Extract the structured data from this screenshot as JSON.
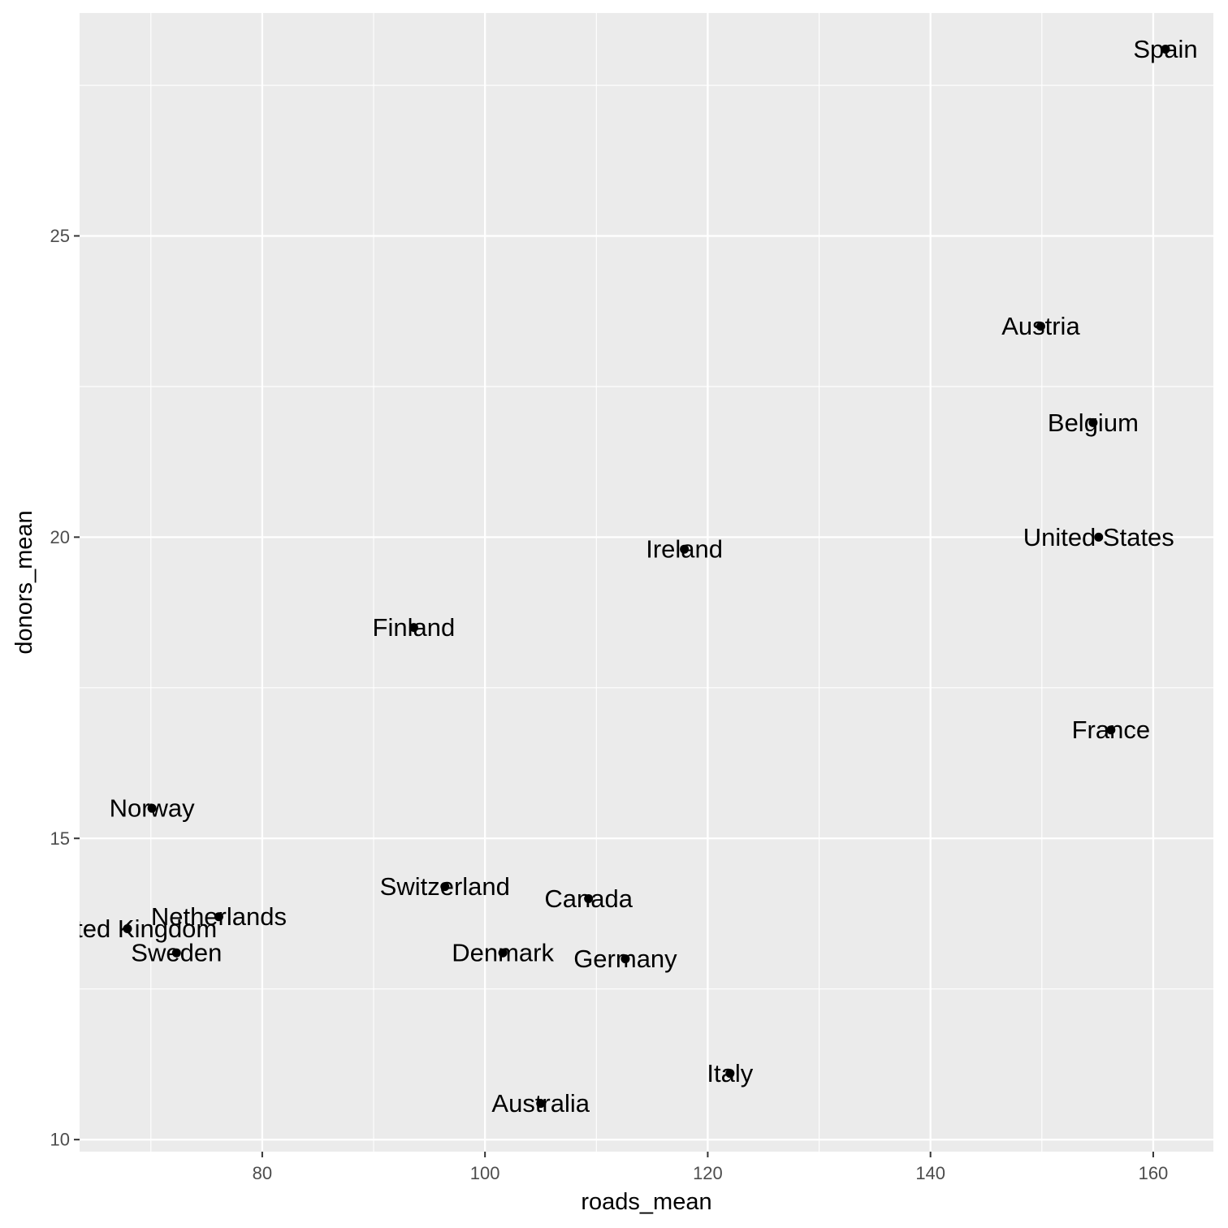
{
  "chart_data": {
    "type": "scatter",
    "title": "",
    "xlabel": "roads_mean",
    "ylabel": "donors_mean",
    "xlim": [
      63.6,
      165.4
    ],
    "ylim": [
      9.8,
      28.7
    ],
    "x_ticks": [
      80,
      100,
      120,
      140,
      160
    ],
    "y_ticks": [
      10,
      15,
      20,
      25
    ],
    "x_tick_labels": [
      "80",
      "100",
      "120",
      "140",
      "160"
    ],
    "y_tick_labels": [
      "10",
      "15",
      "20",
      "25"
    ],
    "grid": true,
    "points": [
      {
        "label": "Spain",
        "x": 161.1,
        "y": 28.1
      },
      {
        "label": "Austria",
        "x": 149.9,
        "y": 23.5
      },
      {
        "label": "Belgium",
        "x": 154.6,
        "y": 21.9
      },
      {
        "label": "United States",
        "x": 155.1,
        "y": 20.0
      },
      {
        "label": "Ireland",
        "x": 117.9,
        "y": 19.8
      },
      {
        "label": "Finland",
        "x": 93.6,
        "y": 18.5
      },
      {
        "label": "France",
        "x": 156.2,
        "y": 16.8
      },
      {
        "label": "Norway",
        "x": 70.1,
        "y": 15.5
      },
      {
        "label": "Switzerland",
        "x": 96.4,
        "y": 14.2
      },
      {
        "label": "Canada",
        "x": 109.3,
        "y": 14.0
      },
      {
        "label": "Netherlands",
        "x": 76.1,
        "y": 13.7
      },
      {
        "label": "United Kingdom",
        "x": 67.9,
        "y": 13.5
      },
      {
        "label": "Sweden",
        "x": 72.3,
        "y": 13.1
      },
      {
        "label": "Denmark",
        "x": 101.6,
        "y": 13.1
      },
      {
        "label": "Germany",
        "x": 112.6,
        "y": 13.0
      },
      {
        "label": "Italy",
        "x": 122.0,
        "y": 11.1
      },
      {
        "label": "Australia",
        "x": 105.0,
        "y": 10.6
      }
    ]
  },
  "colors": {
    "panel_background": "#ebebeb",
    "grid_major": "#ffffff",
    "point": "#000000",
    "tick_text": "#4d4d4d",
    "tick_mark": "#333333"
  }
}
